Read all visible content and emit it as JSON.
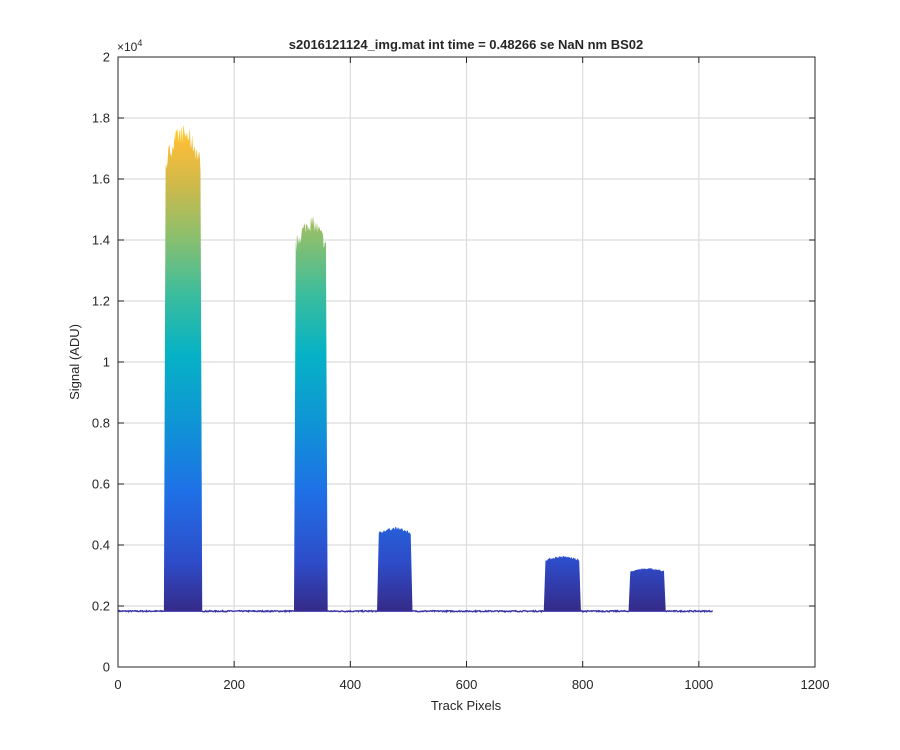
{
  "chart_data": {
    "type": "area",
    "title": "s2016121124_img.mat int time = 0.48266 se  NaN nm BS02",
    "xlabel": "Track Pixels",
    "ylabel": "Signal (ADU)",
    "y_exponent_label": "×10",
    "y_exponent_power": "4",
    "xlim": [
      0,
      1200
    ],
    "ylim": [
      0,
      20000
    ],
    "x_ticks": [
      0,
      200,
      400,
      600,
      800,
      1000,
      1200
    ],
    "x_tick_labels": [
      "0",
      "200",
      "400",
      "600",
      "800",
      "1000",
      "1200"
    ],
    "y_ticks": [
      0,
      2000,
      4000,
      6000,
      8000,
      10000,
      12000,
      14000,
      16000,
      18000,
      20000
    ],
    "y_tick_labels": [
      "0",
      "0.2",
      "0.4",
      "0.6",
      "0.8",
      "1",
      "1.2",
      "1.4",
      "1.6",
      "1.8",
      "2"
    ],
    "grid": true,
    "colormap": "parula",
    "colors": {
      "low": "#3a34a8",
      "mid_blue": "#1f70e6",
      "cyan": "#12b1c8",
      "green": "#7cbf6e",
      "high": "#f9e01e"
    },
    "x_range": [
      1,
      1024
    ],
    "baseline": 1830,
    "peaks": [
      {
        "x_start": 79,
        "x_end": 145,
        "max_signal": 17800
      },
      {
        "x_start": 303,
        "x_end": 361,
        "max_signal": 14800
      },
      {
        "x_start": 446,
        "x_end": 507,
        "max_signal": 4600
      },
      {
        "x_start": 733,
        "x_end": 797,
        "max_signal": 3650
      },
      {
        "x_start": 879,
        "x_end": 943,
        "max_signal": 3250
      }
    ]
  }
}
